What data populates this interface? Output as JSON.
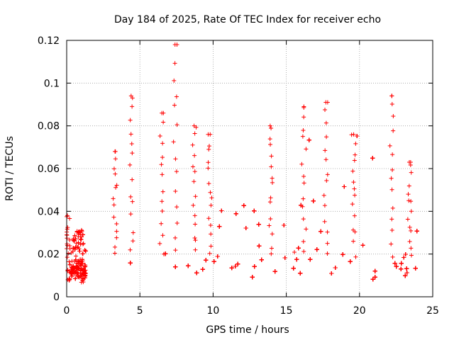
{
  "chart_data": {
    "type": "scatter",
    "title": "Day 184 of 2025, Rate Of TEC Index for receiver echo",
    "xlabel": "GPS time / hours",
    "ylabel": "ROTI / TECUs",
    "xlim": [
      0,
      25
    ],
    "ylim": [
      0,
      0.12
    ],
    "xticks": [
      0,
      5,
      10,
      15,
      20,
      25
    ],
    "yticks": [
      0,
      0.02,
      0.04,
      0.06,
      0.08,
      0.1,
      0.12
    ],
    "xtick_labels": [
      "0",
      "5",
      "10",
      "15",
      "20",
      "25"
    ],
    "ytick_labels": [
      "0",
      "0.02",
      "0.04",
      "0.06",
      "0.08",
      "0.1",
      "0.12"
    ],
    "grid": true,
    "marker": "+",
    "color": "#ff0000",
    "series": [
      {
        "name": "ROTI",
        "data_segments": [
          {
            "t_start": 0.0,
            "t_end": 1.3,
            "base": 0.012,
            "spread": 0.006,
            "outlier_max": 0.038
          },
          {
            "t_start": 3.2,
            "t_end": 24.0,
            "base": 0.015,
            "spread": 0.01,
            "outlier_max": 0.118
          }
        ],
        "notable_peaks": [
          {
            "x": 0.05,
            "y": 0.038
          },
          {
            "x": 3.3,
            "y": 0.068
          },
          {
            "x": 4.4,
            "y": 0.094
          },
          {
            "x": 6.5,
            "y": 0.086
          },
          {
            "x": 7.4,
            "y": 0.118
          },
          {
            "x": 8.7,
            "y": 0.08
          },
          {
            "x": 9.8,
            "y": 0.076
          },
          {
            "x": 13.9,
            "y": 0.08
          },
          {
            "x": 16.2,
            "y": 0.089
          },
          {
            "x": 17.7,
            "y": 0.091
          },
          {
            "x": 19.6,
            "y": 0.076
          },
          {
            "x": 22.2,
            "y": 0.094
          },
          {
            "x": 23.4,
            "y": 0.063
          }
        ]
      }
    ]
  }
}
